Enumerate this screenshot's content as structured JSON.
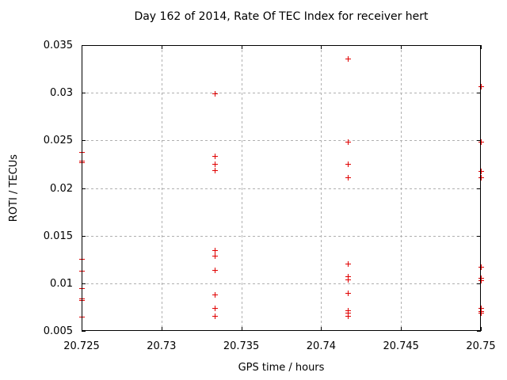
{
  "chart_data": {
    "type": "scatter",
    "title": "Day 162 of 2014, Rate Of TEC Index for receiver hert",
    "xlabel": "GPS time / hours",
    "ylabel": "ROTI / TECUs",
    "xlim": [
      20.725,
      20.75
    ],
    "ylim": [
      0.005,
      0.035
    ],
    "xtick_labels": [
      "20.725",
      "20.73",
      "20.735",
      "20.74",
      "20.745",
      "20.75"
    ],
    "ytick_labels": [
      "0.005",
      "0.01",
      "0.015",
      "0.02",
      "0.025",
      "0.03",
      "0.035"
    ],
    "grid": true,
    "legend_position": "none",
    "marker": "plus",
    "colors": {
      "marker": "#e00000",
      "grid": "#b0b0b0",
      "axis": "#000000",
      "background": "#ffffff"
    },
    "series": [
      {
        "name": "ROTI",
        "points": [
          [
            20.725,
            0.0238
          ],
          [
            20.725,
            0.0229
          ],
          [
            20.725,
            0.0227
          ],
          [
            20.725,
            0.0126
          ],
          [
            20.725,
            0.0113
          ],
          [
            20.725,
            0.0095
          ],
          [
            20.725,
            0.0084
          ],
          [
            20.725,
            0.0082
          ],
          [
            20.725,
            0.0065
          ],
          [
            20.733333,
            0.0299
          ],
          [
            20.733333,
            0.0234
          ],
          [
            20.733333,
            0.0225
          ],
          [
            20.733333,
            0.0219
          ],
          [
            20.733333,
            0.0135
          ],
          [
            20.733333,
            0.0129
          ],
          [
            20.733333,
            0.0114
          ],
          [
            20.733333,
            0.0088
          ],
          [
            20.733333,
            0.0074
          ],
          [
            20.733333,
            0.0066
          ],
          [
            20.741667,
            0.0336
          ],
          [
            20.741667,
            0.0249
          ],
          [
            20.741667,
            0.0225
          ],
          [
            20.741667,
            0.0211
          ],
          [
            20.741667,
            0.0121
          ],
          [
            20.741667,
            0.0107
          ],
          [
            20.741667,
            0.0104
          ],
          [
            20.741667,
            0.009
          ],
          [
            20.741667,
            0.0072
          ],
          [
            20.741667,
            0.0069
          ],
          [
            20.741667,
            0.0066
          ],
          [
            20.75,
            0.0307
          ],
          [
            20.75,
            0.0249
          ],
          [
            20.75,
            0.0218
          ],
          [
            20.75,
            0.0211
          ],
          [
            20.75,
            0.0117
          ],
          [
            20.75,
            0.0106
          ],
          [
            20.75,
            0.0103
          ],
          [
            20.75,
            0.0074
          ],
          [
            20.75,
            0.0071
          ],
          [
            20.75,
            0.0069
          ]
        ]
      }
    ]
  }
}
